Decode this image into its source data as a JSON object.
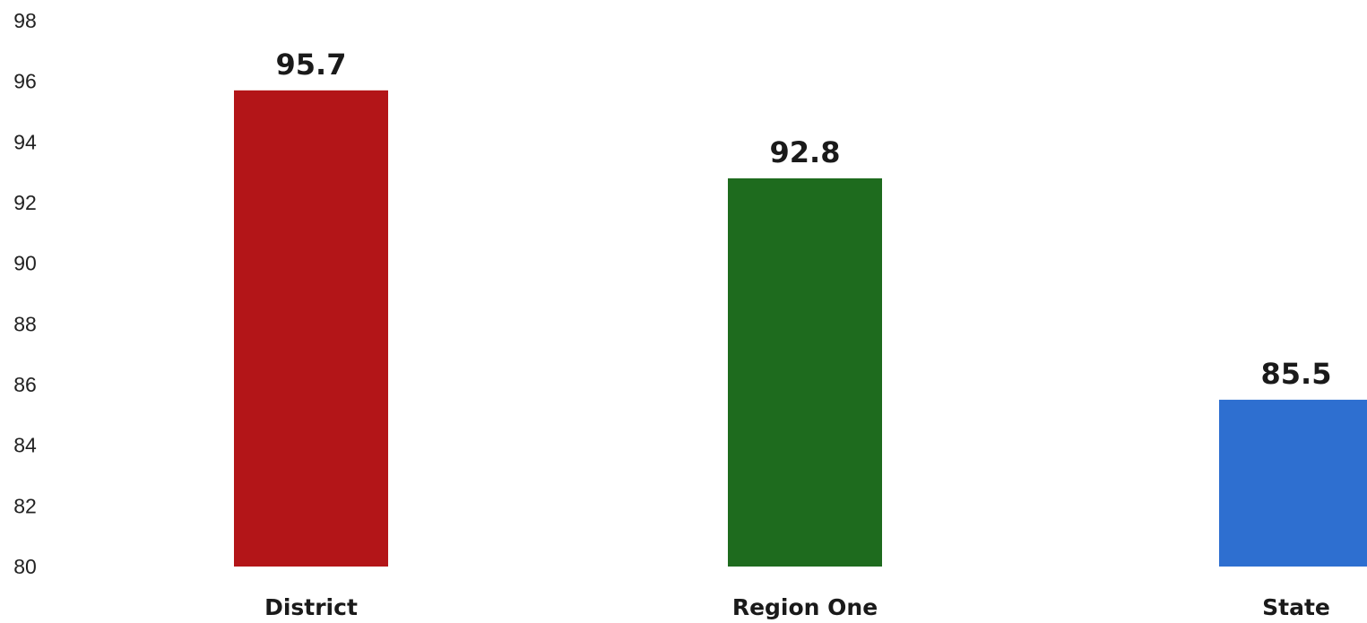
{
  "chart_data": {
    "type": "bar",
    "title": "",
    "xlabel": "",
    "ylabel": "",
    "categories": [
      "District",
      "Region One",
      "State"
    ],
    "values": [
      95.7,
      92.8,
      85.5
    ],
    "value_labels": [
      "95.7",
      "92.8",
      "85.5"
    ],
    "colors": [
      "#b31518",
      "#1e6b1e",
      "#2e6fd0"
    ],
    "ylim": [
      80,
      98
    ],
    "yticks": [
      "80",
      "82",
      "84",
      "86",
      "88",
      "90",
      "92",
      "94",
      "96",
      "98"
    ],
    "grid": false,
    "legend": "none"
  }
}
